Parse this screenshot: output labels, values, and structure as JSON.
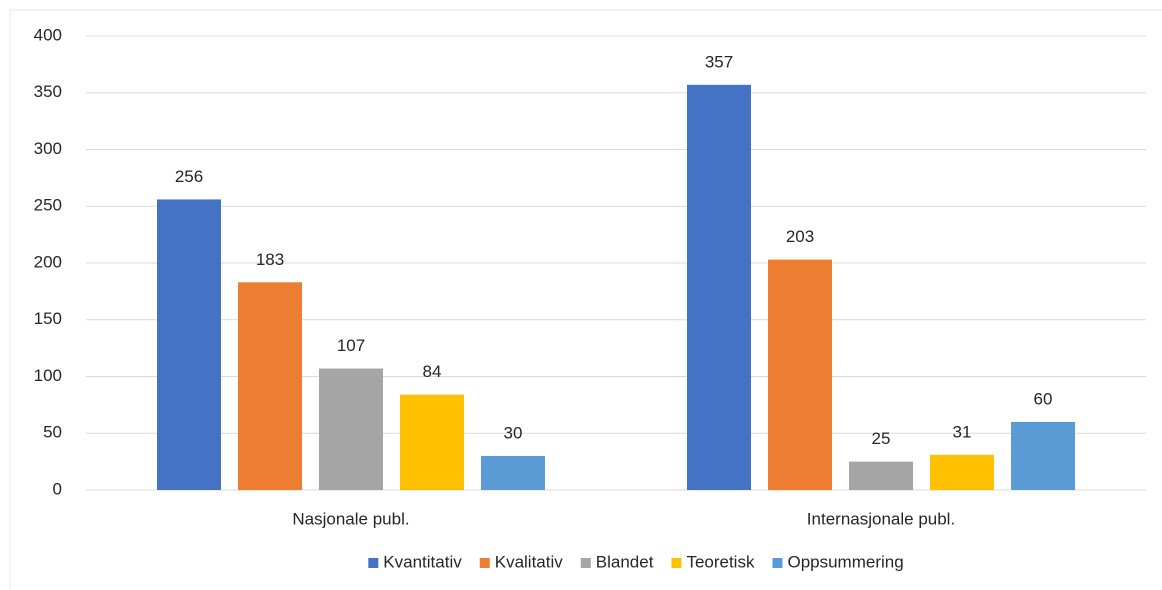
{
  "chart_data": {
    "type": "bar",
    "categories": [
      "Nasjonale publ.",
      "Internasjonale publ."
    ],
    "series": [
      {
        "name": "Kvantitativ",
        "color": "#4472c4",
        "values": [
          256,
          357
        ]
      },
      {
        "name": "Kvalitativ",
        "color": "#ed7d31",
        "values": [
          183,
          203
        ]
      },
      {
        "name": "Blandet",
        "color": "#a5a5a5",
        "values": [
          107,
          25
        ]
      },
      {
        "name": "Teoretisk",
        "color": "#ffc000",
        "values": [
          84,
          31
        ]
      },
      {
        "name": "Oppsummering",
        "color": "#5b9bd5",
        "values": [
          30,
          60
        ]
      }
    ],
    "ylim": [
      0,
      400
    ],
    "yticks": [
      0,
      50,
      100,
      150,
      200,
      250,
      300,
      350,
      400
    ],
    "grid": true,
    "legend": "bottom"
  }
}
